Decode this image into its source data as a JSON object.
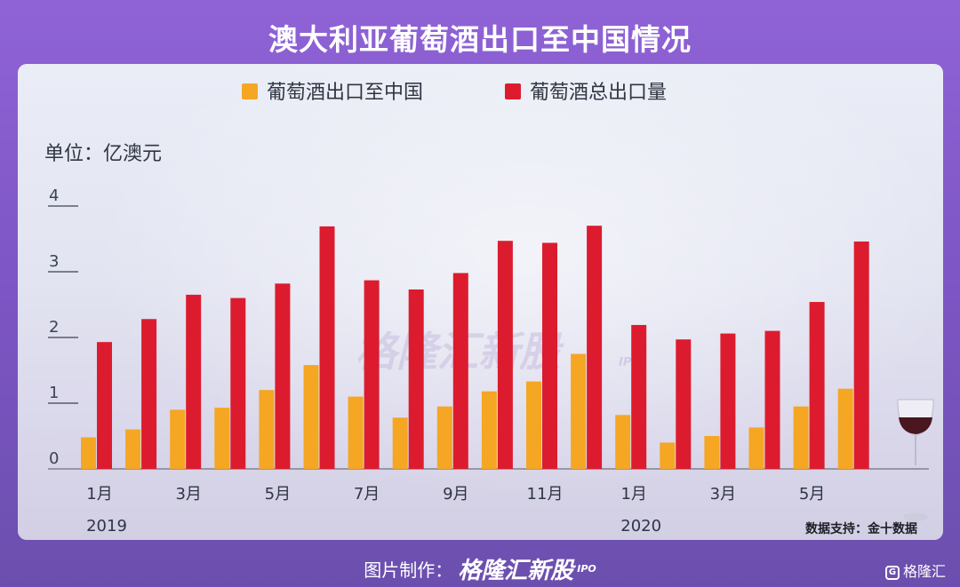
{
  "header": {
    "title": "澳大利亚葡萄酒出口至中国情况"
  },
  "chart_data": {
    "type": "bar",
    "unit_label": "单位：亿澳元",
    "series": [
      {
        "name": "葡萄酒出口至中国",
        "color": "#f5a623",
        "values": [
          0.48,
          0.6,
          0.9,
          0.93,
          1.2,
          1.58,
          1.1,
          0.78,
          0.95,
          1.18,
          1.33,
          1.75,
          0.82,
          0.4,
          0.5,
          0.63,
          0.95,
          1.22
        ]
      },
      {
        "name": "葡萄酒总出口量",
        "color": "#dc1c2e",
        "values": [
          1.93,
          2.28,
          2.65,
          2.6,
          2.82,
          3.69,
          2.87,
          2.73,
          2.98,
          3.47,
          3.44,
          3.7,
          2.19,
          1.97,
          2.06,
          2.1,
          2.54,
          3.46
        ]
      }
    ],
    "x_tick_labels": [
      "1月",
      "",
      "3月",
      "",
      "5月",
      "",
      "7月",
      "",
      "9月",
      "",
      "11月",
      "",
      "1月",
      "",
      "3月",
      "",
      "5月",
      ""
    ],
    "year_labels": [
      {
        "label": "2019",
        "index": 0
      },
      {
        "label": "2020",
        "index": 12
      }
    ],
    "y_ticks": [
      0,
      1,
      2,
      3,
      4
    ],
    "ylim": [
      0,
      4
    ],
    "legend_position": "top-center",
    "grid": false,
    "watermark": "格隆汇新股",
    "watermark_sub": "IPO",
    "source": "数据支持：金十数据"
  },
  "footer": {
    "label": "图片制作：",
    "brand": "格隆汇新股",
    "brand_sub": "IPO"
  },
  "corner": {
    "label": "格隆汇",
    "icon": "G"
  }
}
